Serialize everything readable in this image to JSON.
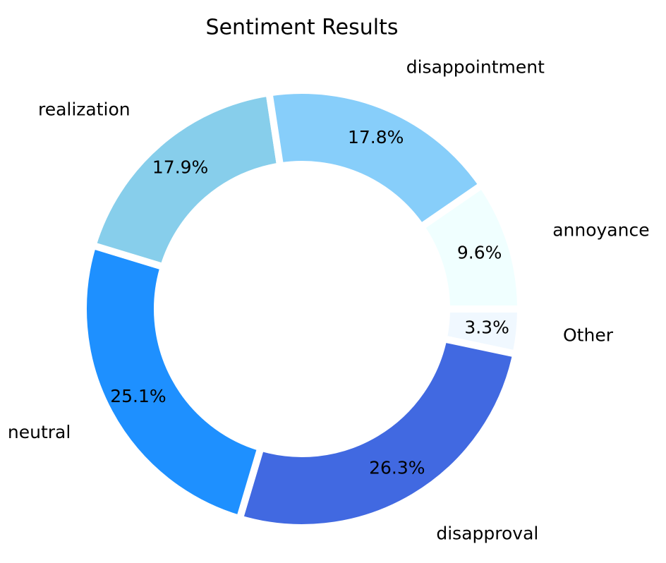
{
  "chart_data": {
    "type": "donut",
    "title": "Sentiment Results",
    "categories": [
      "Other",
      "disapproval",
      "neutral",
      "realization",
      "disappointment",
      "annoyance"
    ],
    "values": [
      3.3,
      26.3,
      25.1,
      17.9,
      17.8,
      9.6
    ],
    "value_labels": [
      "3.3%",
      "26.3%",
      "25.1%",
      "17.9%",
      "17.8%",
      "9.6%"
    ],
    "colors": [
      "#f0f8ff",
      "#4169e1",
      "#1e90ff",
      "#87ceeb",
      "#87cefa",
      "#f0ffff"
    ]
  }
}
